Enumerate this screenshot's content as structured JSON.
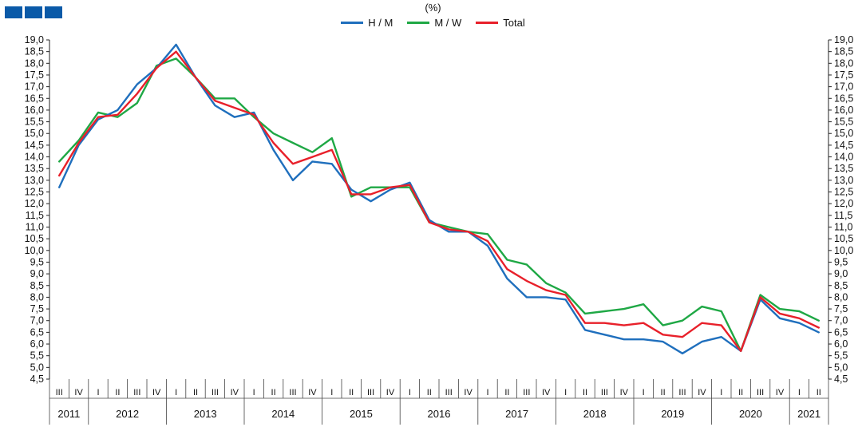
{
  "chart_data": {
    "type": "line",
    "unit_label": "(%)",
    "quarters": [
      "III",
      "IV",
      "I",
      "II",
      "III",
      "IV",
      "I",
      "II",
      "III",
      "IV",
      "I",
      "II",
      "III",
      "IV",
      "I",
      "II",
      "III",
      "IV",
      "I",
      "II",
      "III",
      "IV",
      "I",
      "II",
      "III",
      "IV",
      "I",
      "II",
      "III",
      "IV",
      "I",
      "II",
      "III",
      "IV",
      "I",
      "II",
      "III",
      "IV",
      "I",
      "II"
    ],
    "years": [
      {
        "label": "2011",
        "count": 2
      },
      {
        "label": "2012",
        "count": 4
      },
      {
        "label": "2013",
        "count": 4
      },
      {
        "label": "2014",
        "count": 4
      },
      {
        "label": "2015",
        "count": 4
      },
      {
        "label": "2016",
        "count": 4
      },
      {
        "label": "2017",
        "count": 4
      },
      {
        "label": "2018",
        "count": 4
      },
      {
        "label": "2019",
        "count": 4
      },
      {
        "label": "2020",
        "count": 4
      },
      {
        "label": "2021",
        "count": 2
      }
    ],
    "ylim": [
      4.5,
      19.0
    ],
    "ytick_step": 0.5,
    "decimal_separator": ",",
    "grid": false,
    "legend_position": "top-center",
    "series": [
      {
        "name": "H / M",
        "color": "#1f6fbd",
        "values": [
          12.7,
          14.5,
          15.6,
          16.0,
          17.1,
          17.8,
          18.8,
          17.4,
          16.2,
          15.7,
          15.9,
          14.3,
          13.0,
          13.8,
          13.7,
          12.6,
          12.1,
          12.6,
          12.9,
          11.3,
          10.8,
          10.8,
          10.2,
          8.8,
          8.0,
          8.0,
          7.9,
          6.6,
          6.4,
          6.2,
          6.2,
          6.1,
          5.6,
          6.1,
          6.3,
          5.7,
          7.9,
          7.1,
          6.9,
          6.5
        ]
      },
      {
        "name": "M / W",
        "color": "#1fa845",
        "values": [
          13.8,
          14.7,
          15.9,
          15.7,
          16.3,
          17.9,
          18.2,
          17.4,
          16.5,
          16.5,
          15.7,
          15.0,
          14.6,
          14.2,
          14.8,
          12.3,
          12.7,
          12.7,
          12.7,
          11.2,
          11.0,
          10.8,
          10.7,
          9.6,
          9.4,
          8.6,
          8.2,
          7.3,
          7.4,
          7.5,
          7.7,
          6.8,
          7.0,
          7.6,
          7.4,
          5.7,
          8.1,
          7.5,
          7.4,
          7.0
        ]
      },
      {
        "name": "Total",
        "color": "#e8202a",
        "values": [
          13.2,
          14.6,
          15.7,
          15.8,
          16.7,
          17.8,
          18.5,
          17.4,
          16.4,
          16.1,
          15.8,
          14.6,
          13.7,
          14.0,
          14.3,
          12.4,
          12.4,
          12.7,
          12.8,
          11.2,
          10.9,
          10.8,
          10.4,
          9.2,
          8.7,
          8.3,
          8.1,
          6.9,
          6.9,
          6.8,
          6.9,
          6.4,
          6.3,
          6.9,
          6.8,
          5.7,
          8.0,
          7.3,
          7.1,
          6.7
        ]
      }
    ]
  }
}
